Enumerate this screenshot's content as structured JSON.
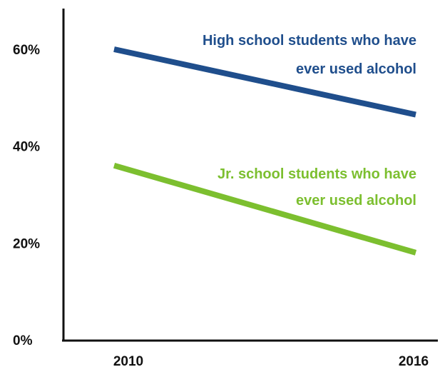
{
  "chart_data": {
    "type": "line",
    "title": "",
    "xlabel": "",
    "ylabel": "",
    "x": [
      "2010",
      "2016"
    ],
    "ylim": [
      0,
      60
    ],
    "y_ticks": [
      "0%",
      "20%",
      "40%",
      "60%"
    ],
    "y_tick_values": [
      0,
      20,
      40,
      60
    ],
    "grid": false,
    "series": [
      {
        "name": "High school students who have ever used alcohol",
        "label_lines": [
          "High school students who have",
          "ever used alcohol"
        ],
        "values": [
          60,
          46.5
        ],
        "color": "#1f4e8c"
      },
      {
        "name": "Jr. school students who have ever used alcohol",
        "label_lines": [
          "Jr. school students who have",
          "ever used alcohol"
        ],
        "values": [
          36,
          18
        ],
        "color": "#7cbf2f"
      }
    ],
    "colors": {
      "axis": "#111111",
      "tick_text": "#111111"
    }
  }
}
